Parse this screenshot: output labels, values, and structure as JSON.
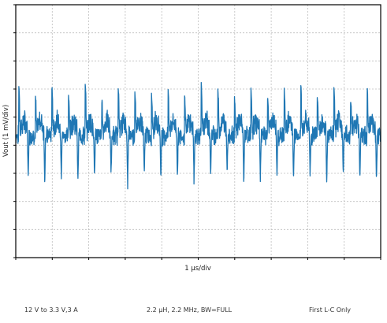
{
  "chart_data": {
    "type": "line",
    "title": "",
    "xlabel": "1 µs/div",
    "ylabel": "Vout (1 mV/div)",
    "x_divisions": 10,
    "y_divisions": 9,
    "xlim": [
      0,
      10
    ],
    "ylim": [
      -4.5,
      4.5
    ],
    "x_unit": "µs",
    "y_unit": "mV",
    "grid": true,
    "grid_style": "dotted",
    "series": [
      {
        "color": "#1f77b4",
        "ripple_period_us": 0.4545,
        "baseline_mV": 0.0,
        "spike_high_mV": [
          1.7,
          1.3,
          1.6,
          1.3,
          1.8,
          1.2,
          1.6,
          1.5,
          1.3,
          1.6,
          1.2,
          1.7,
          1.5,
          1.3,
          1.6,
          1.2,
          1.5,
          1.7,
          1.3,
          1.6,
          1.2,
          1.7
        ],
        "spike_low_mV": [
          -1.7,
          -1.9,
          -1.6,
          -1.9,
          -1.7,
          -1.6,
          -2.0,
          -1.6,
          -1.8,
          -1.6,
          -1.8,
          -1.7,
          -1.5,
          -1.9,
          -1.7,
          -1.6,
          -1.8,
          -1.6,
          -1.9,
          -1.6,
          -1.7,
          -1.8
        ],
        "noise_band_mV": [
          -0.4,
          0.5
        ]
      }
    ]
  },
  "captions": {
    "input_output": "12 V to 3.3 V,3 A",
    "filter": "2.2 µH, 2.2 MHz, BW=FULL",
    "stage": "First L-C Only"
  }
}
